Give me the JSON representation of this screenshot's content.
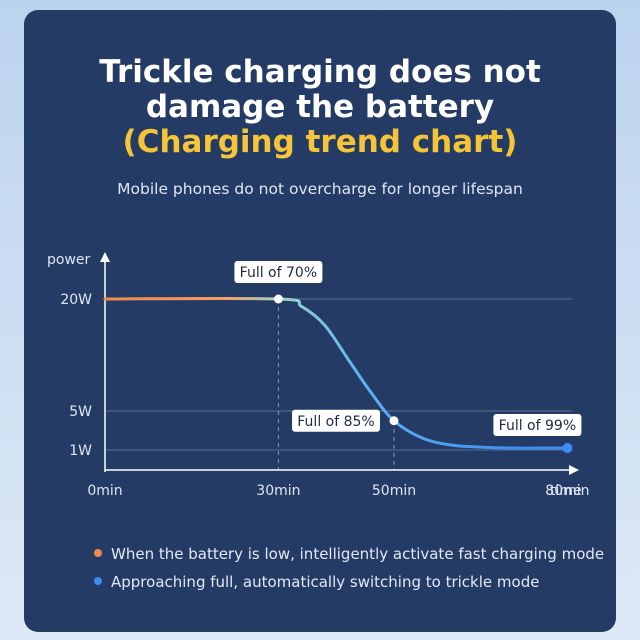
{
  "header": {
    "title_line1": "Trickle charging does not",
    "title_line2": "damage the battery",
    "title_line3": "(Charging trend chart)",
    "subtitle": "Mobile phones do not overcharge for longer lifespan"
  },
  "colors": {
    "card_bg": "#243b66",
    "accent_yellow": "#f6c437",
    "fast_orange": "#f08a4b",
    "trickle_blue": "#3d8df5",
    "mid_teal": "#7fd0c8"
  },
  "chart_data": {
    "type": "line",
    "xlabel": "time",
    "ylabel": "power",
    "x_ticks": [
      {
        "value": 0,
        "label": "0min"
      },
      {
        "value": 30,
        "label": "30min"
      },
      {
        "value": 50,
        "label": "50min"
      },
      {
        "value": 80,
        "label": "80min"
      }
    ],
    "y_ticks": [
      {
        "value": 1,
        "label": "1W"
      },
      {
        "value": 5,
        "label": "5W"
      },
      {
        "value": 20,
        "label": "20W"
      }
    ],
    "series": [
      {
        "x": [
          0,
          30,
          34,
          38,
          42,
          46,
          50,
          55,
          60,
          65,
          70,
          75,
          80
        ],
        "y": [
          20,
          20,
          19,
          16.5,
          12,
          7.5,
          4,
          2.2,
          1.5,
          1.3,
          1.2,
          1.2,
          1.2
        ]
      }
    ],
    "annotations": [
      {
        "x": 30,
        "y": 20,
        "text": "Full of 70%"
      },
      {
        "x": 50,
        "y": 4,
        "text": "Full of 85%"
      },
      {
        "x": 80,
        "y": 1.2,
        "text": "Full of 99%"
      }
    ],
    "grid": true
  },
  "legend": [
    {
      "text": "When the battery is low, intelligently activate fast charging mode",
      "color": "#f08a4b"
    },
    {
      "text": "Approaching full, automatically switching to trickle mode",
      "color": "#3d8df5"
    }
  ]
}
